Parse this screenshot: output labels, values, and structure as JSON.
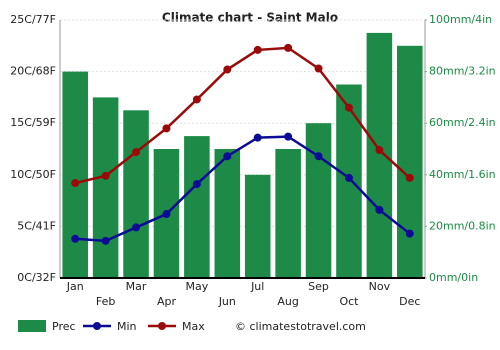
{
  "chart_data": {
    "type": "combo",
    "title": "Climate chart - Saint Malo",
    "categories": [
      "Jan",
      "Feb",
      "Mar",
      "Apr",
      "May",
      "Jun",
      "Jul",
      "Aug",
      "Sep",
      "Oct",
      "Nov",
      "Dec"
    ],
    "series": [
      {
        "name": "Prec",
        "type": "bar",
        "axis": "y2",
        "color": "#1d8a47",
        "values": [
          80,
          70,
          65,
          50,
          55,
          50,
          40,
          50,
          60,
          75,
          95,
          90
        ]
      },
      {
        "name": "Min",
        "type": "line",
        "color": "#0b0b96",
        "values": [
          3.8,
          3.6,
          4.9,
          6.2,
          9.1,
          11.8,
          13.6,
          13.7,
          11.8,
          9.7,
          6.6,
          4.3
        ]
      },
      {
        "name": "Max",
        "type": "line",
        "color": "#9a0a0a",
        "values": [
          9.2,
          9.9,
          12.2,
          14.5,
          17.3,
          20.2,
          22.1,
          22.3,
          20.3,
          16.5,
          12.4,
          9.7
        ]
      }
    ],
    "ylim": [
      0,
      25
    ],
    "yticks": [
      {
        "value": 0,
        "label": "0C/32F"
      },
      {
        "value": 5,
        "label": "5C/41F"
      },
      {
        "value": 10,
        "label": "10C/50F"
      },
      {
        "value": 15,
        "label": "15C/59F"
      },
      {
        "value": 20,
        "label": "20C/68F"
      },
      {
        "value": 25,
        "label": "25C/77F"
      }
    ],
    "y2lim": [
      0,
      100
    ],
    "y2ticks": [
      {
        "value": 0,
        "label": "0mm/0in"
      },
      {
        "value": 20,
        "label": "20mm/0.8in"
      },
      {
        "value": 40,
        "label": "40mm/1.6in"
      },
      {
        "value": 60,
        "label": "60mm/2.4in"
      },
      {
        "value": 80,
        "label": "80mm/3.2in"
      },
      {
        "value": 100,
        "label": "100mm/4in"
      }
    ],
    "grid": true,
    "legend": "bottom",
    "source": "© climatestotravel.com"
  }
}
